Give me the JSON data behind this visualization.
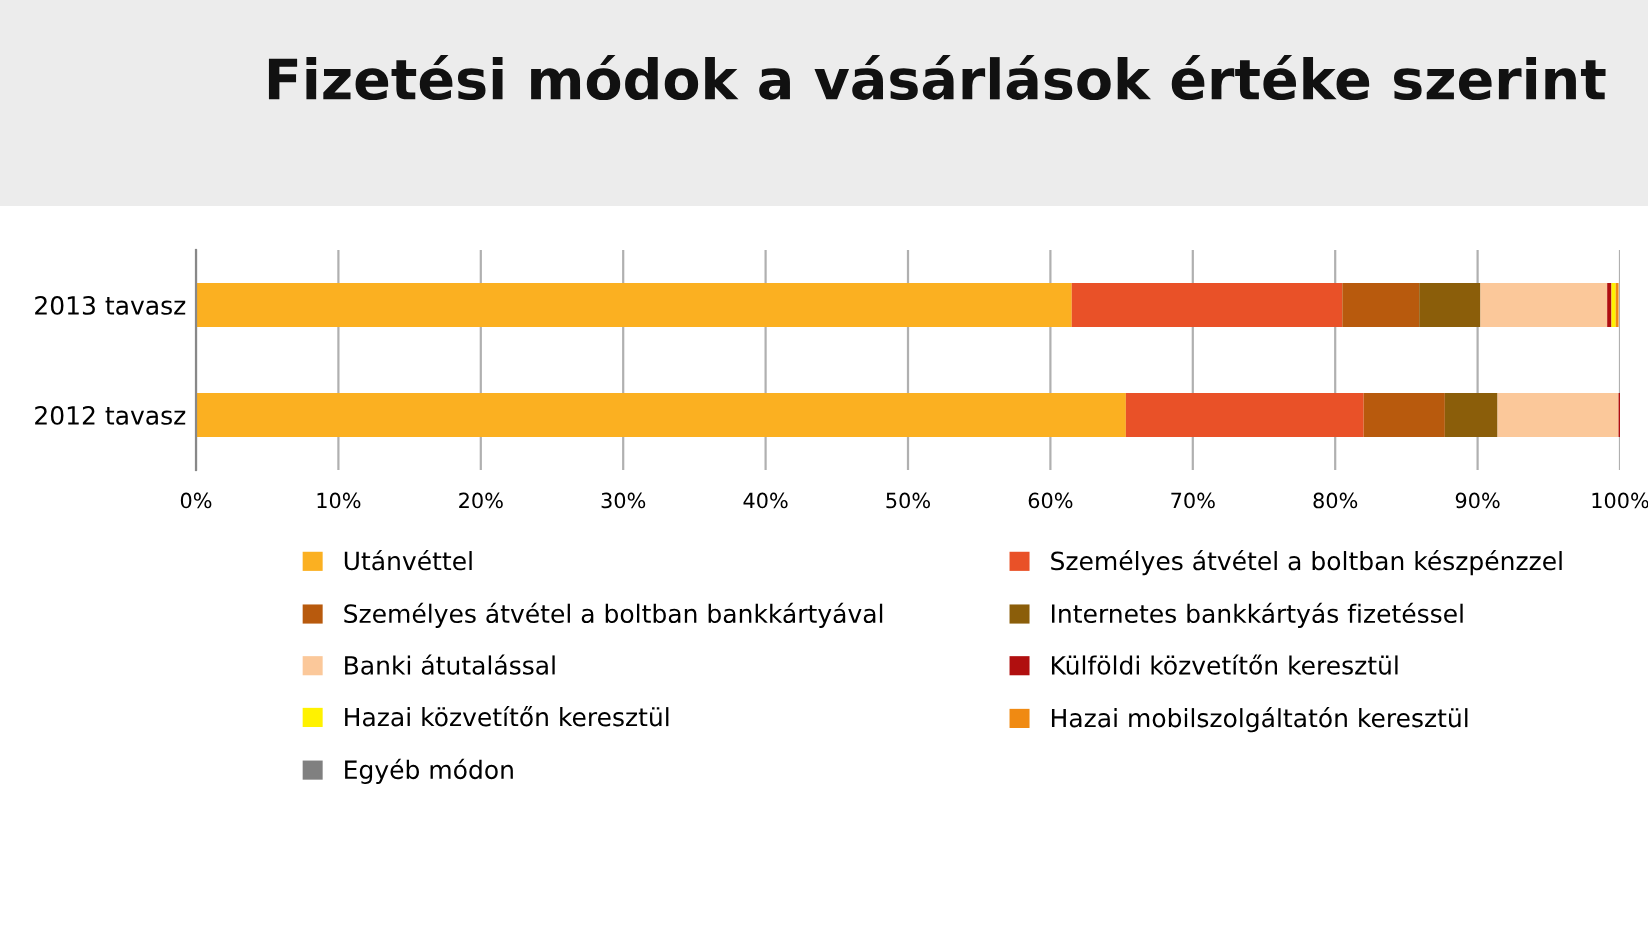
{
  "chart_data": {
    "type": "bar",
    "title": "Fizetési módok a vásárlások értéke szerint",
    "orientation": "horizontal",
    "stacked": true,
    "categories": [
      "2013 tavasz",
      "2012 tavasz"
    ],
    "series": [
      {
        "name": "Utánvéttel",
        "color": "#fbb021",
        "values": [
          61.5,
          65.3
        ]
      },
      {
        "name": "Személyes átvétel a boltban készpénzzel",
        "color": "#e95128",
        "values": [
          19.0,
          16.7
        ]
      },
      {
        "name": "Személyes átvétel a boltban bankkártyával",
        "color": "#b85a0d",
        "values": [
          5.4,
          5.7
        ]
      },
      {
        "name": "Internetes bankkártyás fizetéssel",
        "color": "#8b5e0a",
        "values": [
          4.3,
          3.7
        ]
      },
      {
        "name": "Banki átutalással",
        "color": "#fbc89a",
        "values": [
          8.9,
          8.5
        ]
      },
      {
        "name": "Külföldi közvetítőn keresztül",
        "color": "#b00f0f",
        "values": [
          0.3,
          0.1
        ]
      },
      {
        "name": "Hazai közvetítőn keresztül",
        "color": "#fff200",
        "values": [
          0.3,
          0
        ]
      },
      {
        "name": "Hazai mobilszolgáltatón keresztül",
        "color": "#f08a12",
        "values": [
          0.2,
          0
        ]
      },
      {
        "name": "Egyéb módon",
        "color": "#808080",
        "values": [
          null,
          0
        ]
      }
    ],
    "xlim": [
      0,
      100
    ],
    "xticks": [
      {
        "value": 0,
        "label": "0%"
      },
      {
        "value": 10,
        "label": "10%"
      },
      {
        "value": 20,
        "label": "20%"
      },
      {
        "value": 30,
        "label": "30%"
      },
      {
        "value": 40,
        "label": "40%"
      },
      {
        "value": 50,
        "label": "50%"
      },
      {
        "value": 60,
        "label": "60%"
      },
      {
        "value": 70,
        "label": "70%"
      },
      {
        "value": 80,
        "label": "80%"
      },
      {
        "value": 90,
        "label": "90%"
      },
      {
        "value": 100,
        "label": "100%"
      }
    ],
    "grid": "x",
    "legend": "bottom"
  }
}
